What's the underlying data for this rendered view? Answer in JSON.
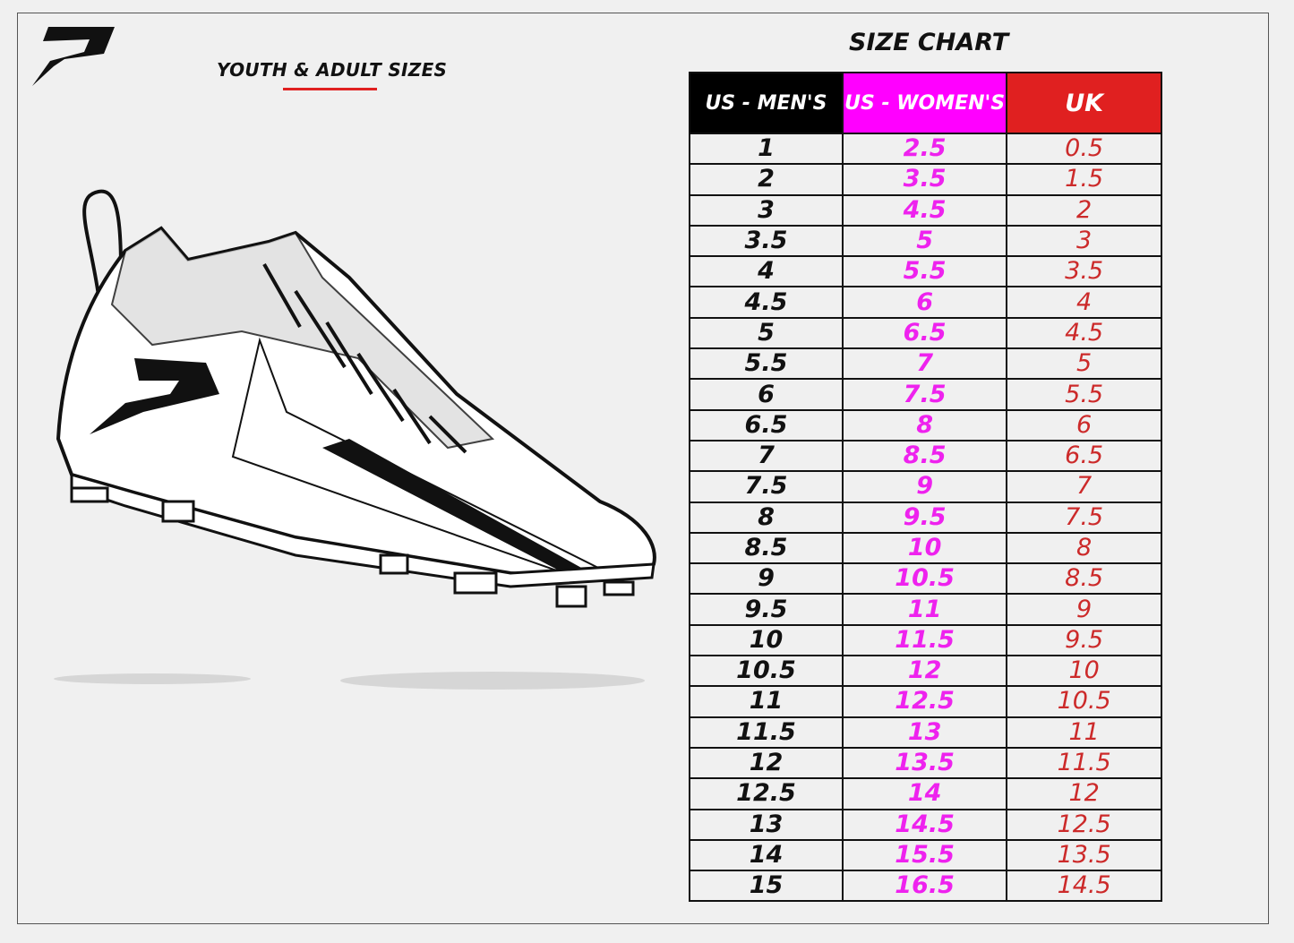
{
  "header": {
    "subtitle": "YOUTH & ADULT SIZES",
    "title": "SIZE CHART",
    "logo_icon": "p-logo-icon"
  },
  "colors": {
    "mens": "#000000",
    "womens": "#ff00ff",
    "uk": "#e02020",
    "accent_underline": "#e02020"
  },
  "table": {
    "columns": [
      "US - MEN'S",
      "US - WOMEN'S",
      "UK"
    ],
    "rows": [
      [
        "1",
        "2.5",
        "0.5"
      ],
      [
        "2",
        "3.5",
        "1.5"
      ],
      [
        "3",
        "4.5",
        "2"
      ],
      [
        "3.5",
        "5",
        "3"
      ],
      [
        "4",
        "5.5",
        "3.5"
      ],
      [
        "4.5",
        "6",
        "4"
      ],
      [
        "5",
        "6.5",
        "4.5"
      ],
      [
        "5.5",
        "7",
        "5"
      ],
      [
        "6",
        "7.5",
        "5.5"
      ],
      [
        "6.5",
        "8",
        "6"
      ],
      [
        "7",
        "8.5",
        "6.5"
      ],
      [
        "7.5",
        "9",
        "7"
      ],
      [
        "8",
        "9.5",
        "7.5"
      ],
      [
        "8.5",
        "10",
        "8"
      ],
      [
        "9",
        "10.5",
        "8.5"
      ],
      [
        "9.5",
        "11",
        "9"
      ],
      [
        "10",
        "11.5",
        "9.5"
      ],
      [
        "10.5",
        "12",
        "10"
      ],
      [
        "11",
        "12.5",
        "10.5"
      ],
      [
        "11.5",
        "13",
        "11"
      ],
      [
        "12",
        "13.5",
        "11.5"
      ],
      [
        "12.5",
        "14",
        "12"
      ],
      [
        "13",
        "14.5",
        "12.5"
      ],
      [
        "14",
        "15.5",
        "13.5"
      ],
      [
        "15",
        "16.5",
        "14.5"
      ]
    ]
  }
}
